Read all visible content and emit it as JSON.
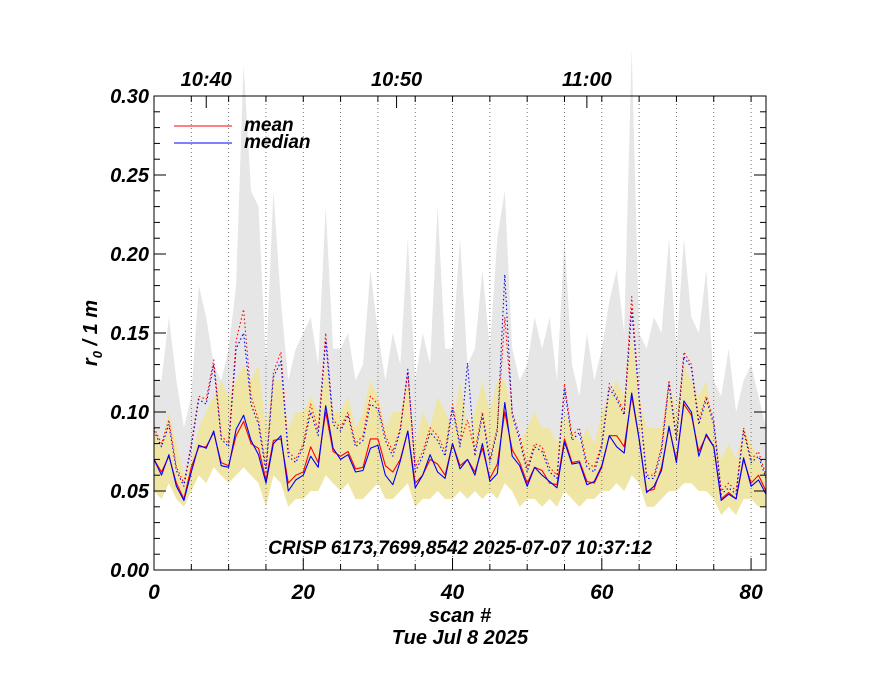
{
  "chart_data": {
    "type": "line",
    "title": "",
    "annotation": "CRISP 6173,7699,8542 2025-07-07 10:37:12",
    "xlabel": "scan #",
    "date_label": "Tue Jul  8 2025",
    "ylabel_main": "r",
    "ylabel_sub": "0",
    "ylabel_rest": " / 1 m",
    "xlim": [
      0,
      82
    ],
    "ylim": [
      0,
      0.3
    ],
    "x_ticks": [
      0,
      20,
      40,
      60,
      80
    ],
    "x_tick_labels": [
      "0",
      "20",
      "40",
      "60",
      "80"
    ],
    "y_ticks": [
      0,
      0.05,
      0.1,
      0.15,
      0.2,
      0.25,
      0.3
    ],
    "y_tick_labels": [
      "0.00",
      "0.05",
      "0.10",
      "0.15",
      "0.20",
      "0.25",
      "0.30"
    ],
    "top_axis": {
      "labels": [
        {
          "x": 7,
          "text": "10:40"
        },
        {
          "x": 32.5,
          "text": "10:50"
        },
        {
          "x": 58,
          "text": "11:00"
        }
      ],
      "minor_ticks": [
        5,
        10,
        15,
        20,
        25,
        30,
        35,
        40,
        45,
        50,
        55,
        60,
        65,
        70,
        75,
        80
      ]
    },
    "vertical_dotted_lines": [
      5,
      10,
      15,
      20,
      25,
      30,
      35,
      40,
      45,
      50,
      55,
      60,
      65,
      70,
      75,
      80
    ],
    "legend_position": "top-left",
    "colors": {
      "mean": "#ff0000",
      "median": "#0000ff",
      "band_max": "#e6e6e6",
      "band_quartile": "#efe6a6"
    },
    "x": [
      0,
      1,
      2,
      3,
      4,
      5,
      6,
      7,
      8,
      9,
      10,
      11,
      12,
      13,
      14,
      15,
      16,
      17,
      18,
      19,
      20,
      21,
      22,
      23,
      24,
      25,
      26,
      27,
      28,
      29,
      30,
      31,
      32,
      33,
      34,
      35,
      36,
      37,
      38,
      39,
      40,
      41,
      42,
      43,
      44,
      45,
      46,
      47,
      48,
      49,
      50,
      51,
      52,
      53,
      54,
      55,
      56,
      57,
      58,
      59,
      60,
      61,
      62,
      63,
      64,
      65,
      66,
      67,
      68,
      69,
      70,
      71,
      72,
      73,
      74,
      75,
      76,
      77,
      78,
      79,
      80,
      81,
      82
    ],
    "band_max_upper": [
      0.12,
      0.12,
      0.16,
      0.12,
      0.09,
      0.11,
      0.18,
      0.16,
      0.13,
      0.12,
      0.14,
      0.18,
      0.32,
      0.24,
      0.23,
      0.13,
      0.24,
      0.17,
      0.12,
      0.14,
      0.15,
      0.16,
      0.13,
      0.23,
      0.14,
      0.14,
      0.15,
      0.12,
      0.13,
      0.19,
      0.15,
      0.12,
      0.15,
      0.13,
      0.21,
      0.12,
      0.15,
      0.13,
      0.23,
      0.14,
      0.14,
      0.21,
      0.13,
      0.14,
      0.19,
      0.14,
      0.21,
      0.24,
      0.14,
      0.12,
      0.13,
      0.16,
      0.14,
      0.16,
      0.12,
      0.21,
      0.13,
      0.11,
      0.15,
      0.12,
      0.14,
      0.17,
      0.19,
      0.15,
      0.33,
      0.15,
      0.14,
      0.16,
      0.15,
      0.21,
      0.14,
      0.21,
      0.16,
      0.15,
      0.19,
      0.12,
      0.11,
      0.14,
      0.1,
      0.12,
      0.13,
      0.11,
      0.09
    ],
    "band_quartile_upper": [
      0.09,
      0.08,
      0.1,
      0.08,
      0.06,
      0.07,
      0.09,
      0.1,
      0.11,
      0.12,
      0.11,
      0.12,
      0.13,
      0.12,
      0.13,
      0.09,
      0.12,
      0.12,
      0.09,
      0.1,
      0.1,
      0.11,
      0.1,
      0.13,
      0.1,
      0.1,
      0.11,
      0.09,
      0.1,
      0.12,
      0.11,
      0.09,
      0.1,
      0.1,
      0.12,
      0.08,
      0.1,
      0.09,
      0.11,
      0.1,
      0.09,
      0.12,
      0.09,
      0.1,
      0.12,
      0.1,
      0.12,
      0.12,
      0.1,
      0.08,
      0.09,
      0.1,
      0.09,
      0.09,
      0.08,
      0.1,
      0.09,
      0.08,
      0.09,
      0.08,
      0.1,
      0.11,
      0.12,
      0.11,
      0.15,
      0.11,
      0.09,
      0.09,
      0.09,
      0.12,
      0.1,
      0.13,
      0.12,
      0.11,
      0.12,
      0.09,
      0.07,
      0.08,
      0.07,
      0.09,
      0.08,
      0.07,
      0.06
    ],
    "band_lower": [
      0.05,
      0.045,
      0.055,
      0.045,
      0.04,
      0.05,
      0.06,
      0.055,
      0.065,
      0.06,
      0.055,
      0.06,
      0.065,
      0.06,
      0.055,
      0.04,
      0.06,
      0.055,
      0.04,
      0.045,
      0.045,
      0.05,
      0.05,
      0.06,
      0.055,
      0.05,
      0.055,
      0.045,
      0.045,
      0.05,
      0.055,
      0.045,
      0.045,
      0.05,
      0.055,
      0.04,
      0.045,
      0.045,
      0.05,
      0.045,
      0.045,
      0.05,
      0.045,
      0.05,
      0.045,
      0.05,
      0.045,
      0.055,
      0.05,
      0.04,
      0.045,
      0.045,
      0.04,
      0.045,
      0.04,
      0.05,
      0.045,
      0.04,
      0.045,
      0.045,
      0.05,
      0.05,
      0.055,
      0.05,
      0.06,
      0.055,
      0.04,
      0.04,
      0.045,
      0.05,
      0.05,
      0.055,
      0.055,
      0.05,
      0.05,
      0.045,
      0.035,
      0.04,
      0.035,
      0.045,
      0.045,
      0.04,
      0.04
    ],
    "series": [
      {
        "name": "mean",
        "color": "#ff0000",
        "dash": "solid",
        "values": [
          0.07,
          0.062,
          0.072,
          0.055,
          0.045,
          0.065,
          0.078,
          0.078,
          0.087,
          0.068,
          0.066,
          0.085,
          0.094,
          0.08,
          0.077,
          0.057,
          0.082,
          0.083,
          0.055,
          0.06,
          0.062,
          0.078,
          0.068,
          0.1,
          0.075,
          0.072,
          0.075,
          0.064,
          0.065,
          0.083,
          0.083,
          0.066,
          0.062,
          0.07,
          0.088,
          0.055,
          0.06,
          0.07,
          0.067,
          0.06,
          0.08,
          0.066,
          0.07,
          0.062,
          0.077,
          0.058,
          0.067,
          0.1,
          0.076,
          0.068,
          0.055,
          0.065,
          0.063,
          0.055,
          0.054,
          0.083,
          0.068,
          0.069,
          0.056,
          0.055,
          0.065,
          0.085,
          0.085,
          0.078,
          0.11,
          0.083,
          0.05,
          0.051,
          0.065,
          0.09,
          0.07,
          0.105,
          0.098,
          0.075,
          0.085,
          0.078,
          0.045,
          0.049,
          0.045,
          0.07,
          0.055,
          0.06,
          0.05
        ]
      },
      {
        "name": "median",
        "color": "#0000ff",
        "dash": "solid",
        "values": [
          0.07,
          0.06,
          0.073,
          0.053,
          0.044,
          0.062,
          0.079,
          0.077,
          0.088,
          0.066,
          0.065,
          0.089,
          0.098,
          0.082,
          0.073,
          0.055,
          0.08,
          0.085,
          0.05,
          0.057,
          0.06,
          0.072,
          0.065,
          0.104,
          0.077,
          0.07,
          0.073,
          0.062,
          0.063,
          0.077,
          0.079,
          0.06,
          0.054,
          0.069,
          0.088,
          0.052,
          0.06,
          0.073,
          0.062,
          0.058,
          0.08,
          0.064,
          0.07,
          0.06,
          0.08,
          0.056,
          0.061,
          0.106,
          0.072,
          0.066,
          0.053,
          0.065,
          0.06,
          0.056,
          0.052,
          0.081,
          0.067,
          0.068,
          0.054,
          0.056,
          0.066,
          0.085,
          0.078,
          0.074,
          0.112,
          0.083,
          0.049,
          0.053,
          0.063,
          0.091,
          0.068,
          0.107,
          0.1,
          0.072,
          0.086,
          0.078,
          0.044,
          0.048,
          0.045,
          0.071,
          0.053,
          0.057,
          0.048
        ]
      },
      {
        "color": "#ff0000",
        "dash": "dotted",
        "values": [
          0.09,
          0.08,
          0.095,
          0.065,
          0.055,
          0.08,
          0.11,
          0.108,
          0.133,
          0.085,
          0.08,
          0.145,
          0.165,
          0.11,
          0.095,
          0.065,
          0.125,
          0.138,
          0.075,
          0.07,
          0.08,
          0.105,
          0.088,
          0.15,
          0.095,
          0.09,
          0.1,
          0.08,
          0.085,
          0.11,
          0.105,
          0.085,
          0.075,
          0.09,
          0.125,
          0.065,
          0.075,
          0.09,
          0.085,
          0.075,
          0.105,
          0.08,
          0.095,
          0.075,
          0.1,
          0.07,
          0.09,
          0.16,
          0.1,
          0.085,
          0.065,
          0.08,
          0.078,
          0.065,
          0.06,
          0.118,
          0.085,
          0.09,
          0.068,
          0.065,
          0.08,
          0.118,
          0.11,
          0.1,
          0.173,
          0.11,
          0.06,
          0.06,
          0.078,
          0.12,
          0.085,
          0.138,
          0.13,
          0.095,
          0.11,
          0.095,
          0.05,
          0.055,
          0.05,
          0.09,
          0.07,
          0.075,
          0.06
        ]
      },
      {
        "color": "#0000ff",
        "dash": "dotted",
        "values": [
          0.088,
          0.078,
          0.092,
          0.063,
          0.053,
          0.078,
          0.108,
          0.105,
          0.13,
          0.083,
          0.078,
          0.14,
          0.15,
          0.105,
          0.092,
          0.062,
          0.122,
          0.132,
          0.072,
          0.068,
          0.078,
          0.1,
          0.085,
          0.145,
          0.092,
          0.088,
          0.098,
          0.078,
          0.082,
          0.105,
          0.102,
          0.082,
          0.072,
          0.088,
          0.127,
          0.062,
          0.072,
          0.087,
          0.082,
          0.072,
          0.102,
          0.078,
          0.131,
          0.072,
          0.098,
          0.068,
          0.088,
          0.187,
          0.098,
          0.082,
          0.062,
          0.078,
          0.075,
          0.062,
          0.058,
          0.115,
          0.082,
          0.087,
          0.065,
          0.062,
          0.078,
          0.115,
          0.108,
          0.098,
          0.165,
          0.108,
          0.058,
          0.058,
          0.075,
          0.118,
          0.082,
          0.135,
          0.128,
          0.092,
          0.108,
          0.092,
          0.048,
          0.052,
          0.048,
          0.088,
          0.068,
          0.072,
          0.058
        ]
      }
    ]
  }
}
